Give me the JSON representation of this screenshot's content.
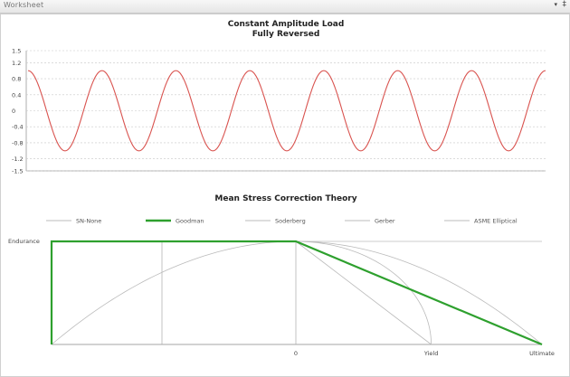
{
  "window": {
    "title": "Worksheet",
    "pin_glyph": "‡",
    "dropdown_glyph": "▾"
  },
  "chart_data": [
    {
      "type": "line",
      "title": "Constant Amplitude Load",
      "subtitle": "Fully Reversed",
      "yticks": [
        "1.5",
        "1.2",
        "0.8",
        "0.4",
        "0",
        "-0.4",
        "-0.8",
        "-1.2",
        "-1.5"
      ],
      "ylim": [
        -1.5,
        1.5
      ],
      "cycles": 7,
      "amplitude": 1,
      "series": [
        {
          "color": "#d9534f",
          "x": [
            0,
            0.25,
            0.5,
            0.75,
            1,
            1.25,
            1.5,
            1.75,
            2,
            2.25,
            2.5,
            2.75,
            3,
            3.25,
            3.5,
            3.75,
            4,
            4.25,
            4.5,
            4.75,
            5,
            5.25,
            5.5,
            5.75,
            6,
            6.25,
            6.5,
            6.75,
            7
          ],
          "y": [
            1,
            0,
            -1,
            0,
            1,
            0,
            -1,
            0,
            1,
            0,
            -1,
            0,
            1,
            0,
            -1,
            0,
            1,
            0,
            -1,
            0,
            1,
            0,
            -1,
            0,
            1,
            0,
            -1,
            0,
            1
          ]
        }
      ],
      "grid": true
    },
    {
      "type": "line",
      "title": "Mean Stress Correction Theory",
      "legend": [
        {
          "name": "SN-None",
          "color": "#bbbbbb",
          "selected": false
        },
        {
          "name": "Goodman",
          "color": "#2ea02e",
          "selected": true
        },
        {
          "name": "Soderberg",
          "color": "#bbbbbb",
          "selected": false
        },
        {
          "name": "Gerber",
          "color": "#bbbbbb",
          "selected": false
        },
        {
          "name": "ASME Elliptical",
          "color": "#bbbbbb",
          "selected": false
        }
      ],
      "ylabel": "Endurance",
      "xticks": [
        "0",
        "Yield",
        "Ultimate"
      ],
      "x_values": {
        "compression_end": -1,
        "zero": 0,
        "yield": 0.55,
        "ultimate": 1
      },
      "series": [
        {
          "name": "SN-None",
          "color": "#bbbbbb",
          "x": [
            -1,
            1
          ],
          "y": [
            1,
            1
          ]
        },
        {
          "name": "Goodman",
          "color": "#2ea02e",
          "x": [
            -1,
            -1,
            0,
            1
          ],
          "y": [
            0,
            1,
            1,
            0
          ]
        },
        {
          "name": "Soderberg",
          "color": "#bbbbbb",
          "x": [
            0,
            0.55
          ],
          "y": [
            1,
            0
          ]
        },
        {
          "name": "Gerber",
          "color": "#bbbbbb",
          "x": [
            -1,
            -0.5,
            0,
            0.5,
            1
          ],
          "y": [
            0,
            0.75,
            1,
            0.75,
            0
          ]
        },
        {
          "name": "ASME Elliptical",
          "color": "#bbbbbb",
          "x": [
            0,
            0.3,
            0.5,
            0.55
          ],
          "y": [
            1,
            0.82,
            0.45,
            0
          ]
        }
      ]
    }
  ]
}
